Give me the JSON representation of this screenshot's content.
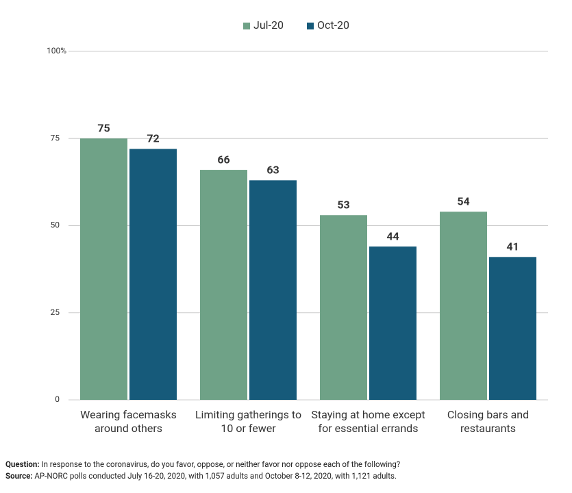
{
  "chart_data": {
    "type": "bar",
    "categories": [
      "Wearing facemasks\naround others",
      "Limiting gatherings to\n10 or fewer",
      "Staying at home except\nfor essential errands",
      "Closing bars and\nrestaurants"
    ],
    "series": [
      {
        "name": "Jul-20",
        "color": "#6fa287",
        "values": [
          75,
          66,
          53,
          54
        ]
      },
      {
        "name": "Oct-20",
        "color": "#165a7a",
        "values": [
          72,
          63,
          44,
          41
        ]
      }
    ],
    "ylim": [
      0,
      100
    ],
    "yticks": [
      0,
      25,
      50,
      75,
      {
        "value": 100,
        "label": "100%"
      }
    ],
    "grid": true,
    "legend": "top",
    "footnote": {
      "question_label": "Question:",
      "question": "In response to the coronavirus, do you favor, oppose, or neither favor nor oppose each of the following?",
      "source_label": "Source:",
      "source": "AP-NORC polls conducted July 16-20, 2020, with 1,057 adults and October 8-12, 2020, with 1,121 adults."
    }
  }
}
